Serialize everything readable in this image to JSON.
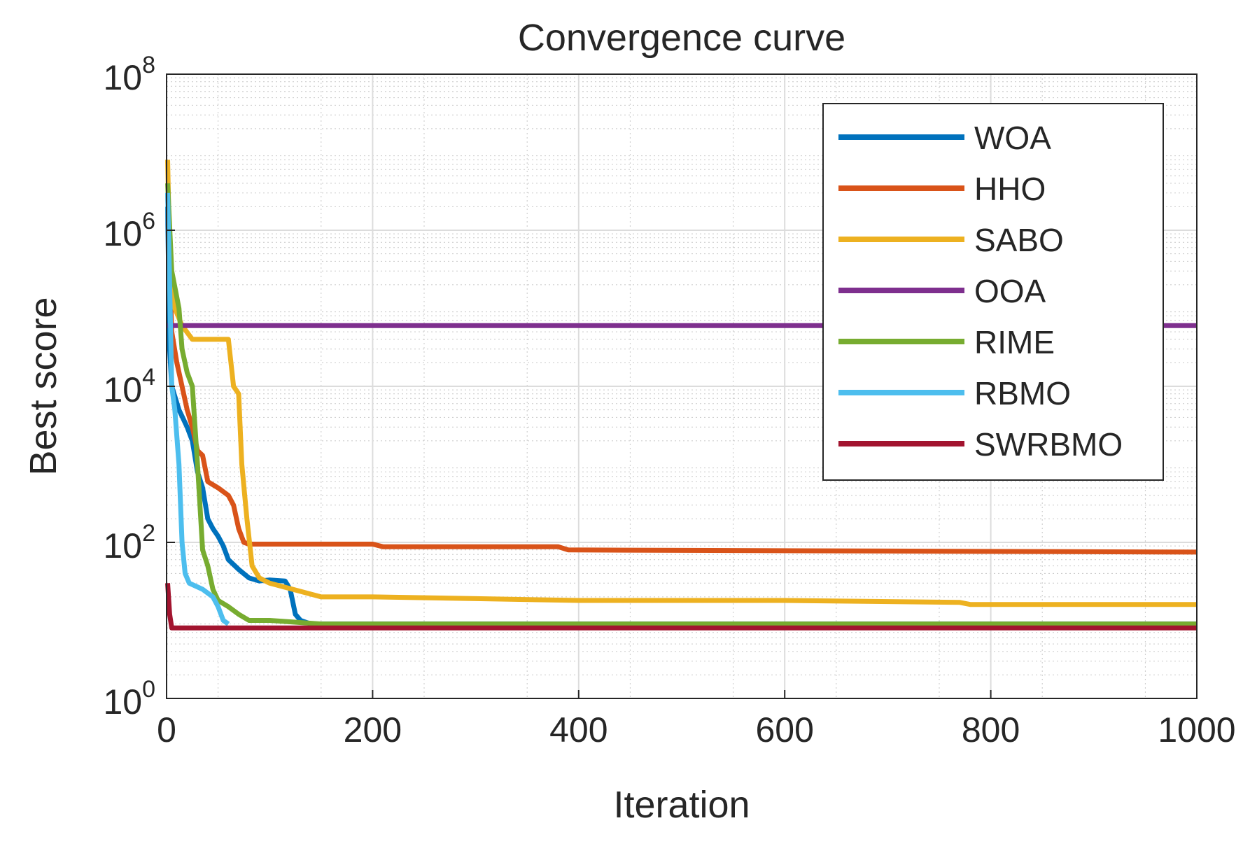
{
  "chart_data": {
    "type": "line",
    "title": "Convergence curve",
    "xlabel": "Iteration",
    "ylabel": "Best score",
    "xlim": [
      0,
      1000
    ],
    "ylim": [
      1,
      100000000
    ],
    "yscale": "log",
    "grid": true,
    "minor_grid": true,
    "legend_position": "top-right",
    "x_ticks": [
      {
        "value": 0,
        "label": "0"
      },
      {
        "value": 200,
        "label": "200"
      },
      {
        "value": 400,
        "label": "400"
      },
      {
        "value": 600,
        "label": "600"
      },
      {
        "value": 800,
        "label": "800"
      },
      {
        "value": 1000,
        "label": "1000"
      }
    ],
    "y_ticks": [
      {
        "value": 1,
        "base": "10",
        "exp": "0"
      },
      {
        "value": 100,
        "base": "10",
        "exp": "2"
      },
      {
        "value": 10000,
        "base": "10",
        "exp": "4"
      },
      {
        "value": 1000000,
        "base": "10",
        "exp": "6"
      },
      {
        "value": 100000000,
        "base": "10",
        "exp": "8"
      }
    ],
    "series": [
      {
        "name": "WOA",
        "color": "#0072BD",
        "points": [
          [
            1,
            2000000
          ],
          [
            3,
            30000
          ],
          [
            5,
            10000
          ],
          [
            12,
            5000
          ],
          [
            20,
            3000
          ],
          [
            25,
            2000
          ],
          [
            30,
            800
          ],
          [
            35,
            500
          ],
          [
            40,
            200
          ],
          [
            45,
            150
          ],
          [
            50,
            120
          ],
          [
            55,
            90
          ],
          [
            60,
            60
          ],
          [
            70,
            45
          ],
          [
            80,
            35
          ],
          [
            90,
            32
          ],
          [
            100,
            33
          ],
          [
            115,
            32
          ],
          [
            120,
            25
          ],
          [
            125,
            12
          ],
          [
            130,
            10
          ],
          [
            140,
            9
          ],
          [
            1000,
            9
          ]
        ]
      },
      {
        "name": "HHO",
        "color": "#D95319",
        "points": [
          [
            1,
            3000000
          ],
          [
            5,
            50000
          ],
          [
            10,
            20000
          ],
          [
            15,
            10000
          ],
          [
            20,
            5000
          ],
          [
            25,
            3000
          ],
          [
            30,
            1500
          ],
          [
            35,
            1300
          ],
          [
            40,
            600
          ],
          [
            50,
            500
          ],
          [
            60,
            400
          ],
          [
            65,
            300
          ],
          [
            70,
            150
          ],
          [
            75,
            100
          ],
          [
            80,
            95
          ],
          [
            100,
            95
          ],
          [
            200,
            95
          ],
          [
            210,
            88
          ],
          [
            380,
            88
          ],
          [
            390,
            80
          ],
          [
            1000,
            75
          ]
        ]
      },
      {
        "name": "SABO",
        "color": "#EDB120",
        "points": [
          [
            1,
            8000000
          ],
          [
            3,
            500000
          ],
          [
            8,
            100000
          ],
          [
            15,
            60000
          ],
          [
            25,
            40000
          ],
          [
            60,
            40000
          ],
          [
            65,
            10000
          ],
          [
            70,
            8000
          ],
          [
            73,
            1000
          ],
          [
            78,
            200
          ],
          [
            83,
            50
          ],
          [
            90,
            35
          ],
          [
            100,
            30
          ],
          [
            150,
            20
          ],
          [
            200,
            20
          ],
          [
            300,
            19
          ],
          [
            400,
            18
          ],
          [
            600,
            18
          ],
          [
            770,
            17
          ],
          [
            780,
            16
          ],
          [
            1000,
            16
          ]
        ]
      },
      {
        "name": "OOA",
        "color": "#7E2F8E",
        "points": [
          [
            1,
            60000
          ],
          [
            1000,
            60000
          ]
        ]
      },
      {
        "name": "RIME",
        "color": "#77AC30",
        "points": [
          [
            1,
            4000000
          ],
          [
            5,
            300000
          ],
          [
            12,
            100000
          ],
          [
            15,
            30000
          ],
          [
            20,
            15000
          ],
          [
            25,
            10000
          ],
          [
            30,
            1000
          ],
          [
            35,
            80
          ],
          [
            40,
            50
          ],
          [
            45,
            25
          ],
          [
            50,
            18
          ],
          [
            60,
            15
          ],
          [
            70,
            12
          ],
          [
            80,
            10
          ],
          [
            100,
            10
          ],
          [
            150,
            9
          ],
          [
            1000,
            9
          ]
        ]
      },
      {
        "name": "RBMO",
        "color": "#4DBEEE",
        "points": [
          [
            1,
            3000000
          ],
          [
            3,
            200000
          ],
          [
            5,
            10000
          ],
          [
            8,
            5000
          ],
          [
            12,
            1000
          ],
          [
            15,
            100
          ],
          [
            18,
            40
          ],
          [
            22,
            30
          ],
          [
            35,
            25
          ],
          [
            45,
            20
          ],
          [
            50,
            15
          ],
          [
            55,
            10
          ],
          [
            60,
            9
          ]
        ]
      },
      {
        "name": "SWRBMO",
        "color": "#A2142F",
        "points": [
          [
            1,
            30
          ],
          [
            3,
            12
          ],
          [
            5,
            8
          ],
          [
            1000,
            8
          ]
        ]
      }
    ]
  }
}
